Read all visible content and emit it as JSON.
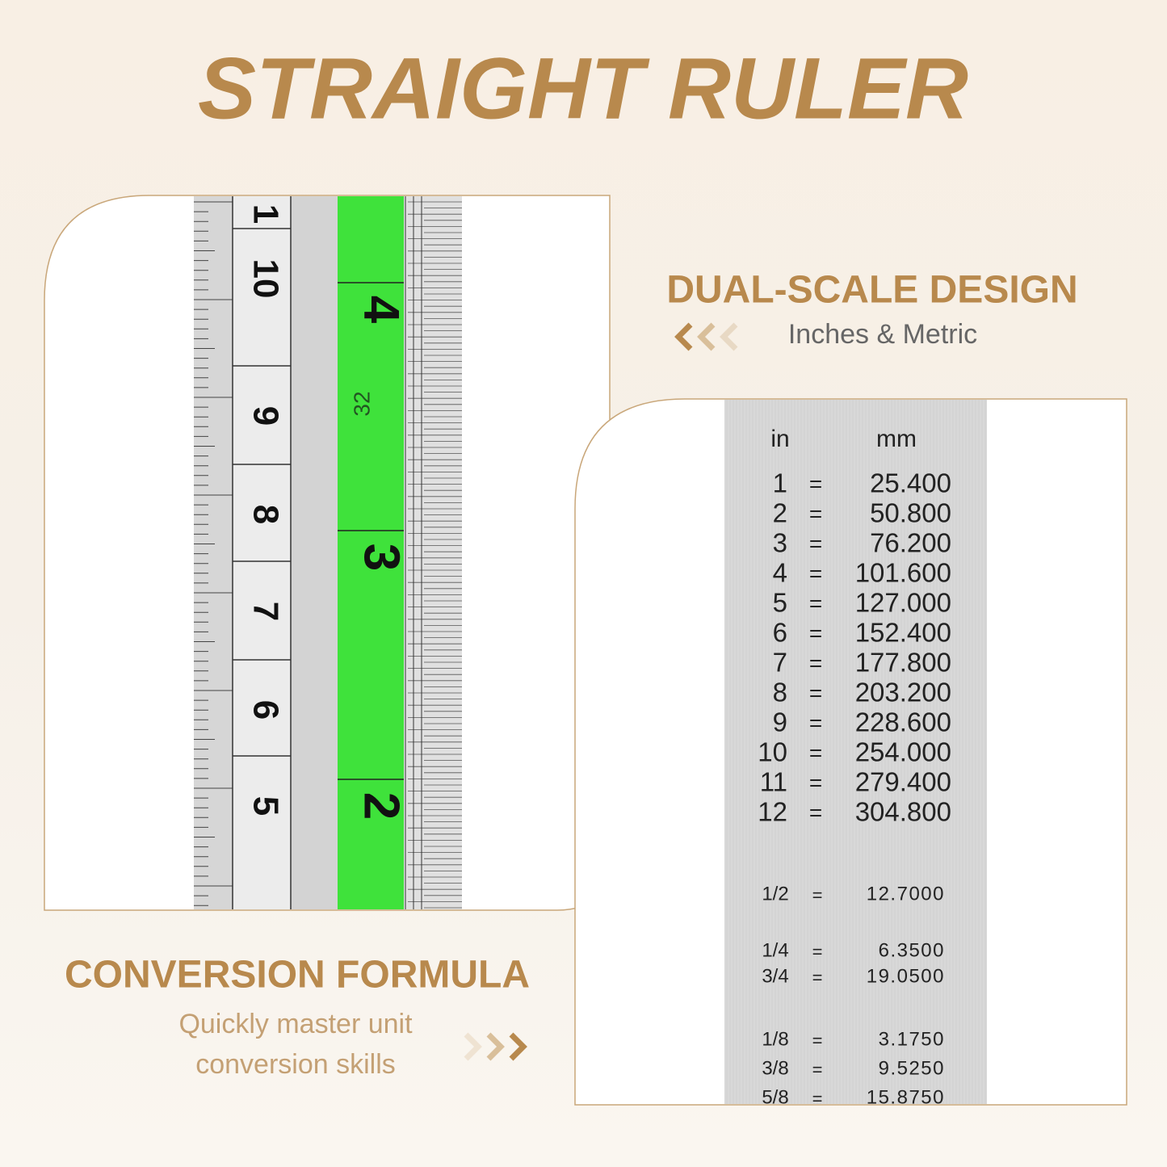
{
  "header": {
    "title": "STRAIGHT RULER"
  },
  "feature_1": {
    "heading": "DUAL-SCALE DESIGN",
    "subheading": "Inches & Metric"
  },
  "feature_2": {
    "heading": "CONVERSION FORMULA",
    "subheading_lines": [
      "Quickly master unit",
      "conversion skills"
    ]
  },
  "ruler_photo": {
    "cm_labels": [
      "1",
      "10",
      "9",
      "8",
      "7",
      "6",
      "5"
    ],
    "inch_labels": [
      "4",
      "3",
      "2"
    ],
    "small_label": "32"
  },
  "conversion_table": {
    "columns": [
      "in",
      "mm"
    ],
    "separator": "=",
    "rows": [
      [
        "1",
        "25.400"
      ],
      [
        "2",
        "50.800"
      ],
      [
        "3",
        "76.200"
      ],
      [
        "4",
        "101.600"
      ],
      [
        "5",
        "127.000"
      ],
      [
        "6",
        "152.400"
      ],
      [
        "7",
        "177.800"
      ],
      [
        "8",
        "203.200"
      ],
      [
        "9",
        "228.600"
      ],
      [
        "10",
        "254.000"
      ],
      [
        "11",
        "279.400"
      ],
      [
        "12",
        "304.800"
      ]
    ],
    "fraction_rows": [
      [
        "1/2",
        "12.7000"
      ],
      [
        "1/4",
        "6.3500"
      ],
      [
        "3/4",
        "19.0500"
      ],
      [
        "1/8",
        "3.1750"
      ],
      [
        "3/8",
        "9.5250"
      ],
      [
        "5/8",
        "15.8750"
      ]
    ]
  }
}
